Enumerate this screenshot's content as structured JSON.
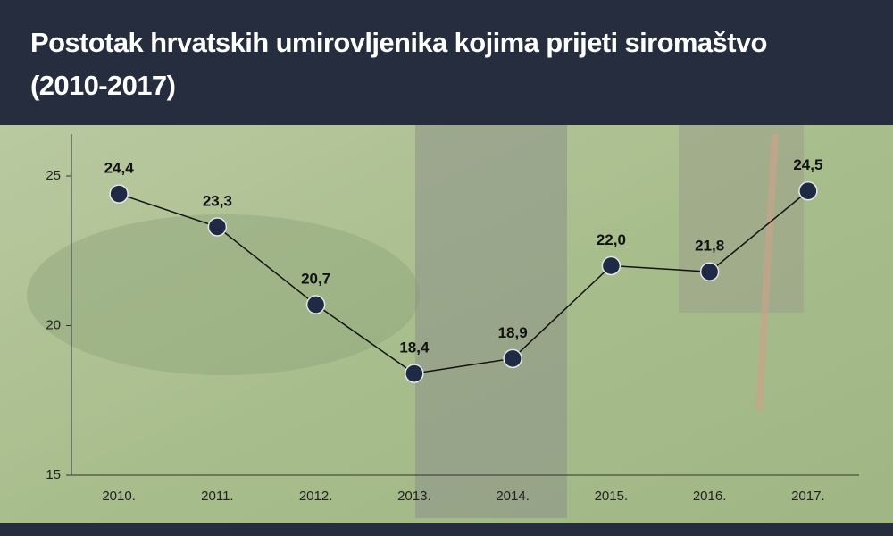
{
  "chart_data": {
    "type": "line",
    "title": "Postotak hrvatskih umirovljenika kojima prijeti siromaštvo (2010-2017)",
    "categories": [
      "2010.",
      "2011.",
      "2012.",
      "2013.",
      "2014.",
      "2015.",
      "2016.",
      "2017."
    ],
    "series": [
      {
        "color": "#1f2a44",
        "values": [
          24.4,
          23.3,
          20.7,
          18.4,
          18.9,
          22.0,
          21.8,
          24.5
        ],
        "value_labels": [
          "24,4",
          "23,3",
          "20,7",
          "18,4",
          "18,9",
          "22,0",
          "21,8",
          "24,5"
        ]
      }
    ],
    "ylim": [
      15,
      26.4
    ],
    "yticks": [
      15,
      20,
      25
    ]
  }
}
